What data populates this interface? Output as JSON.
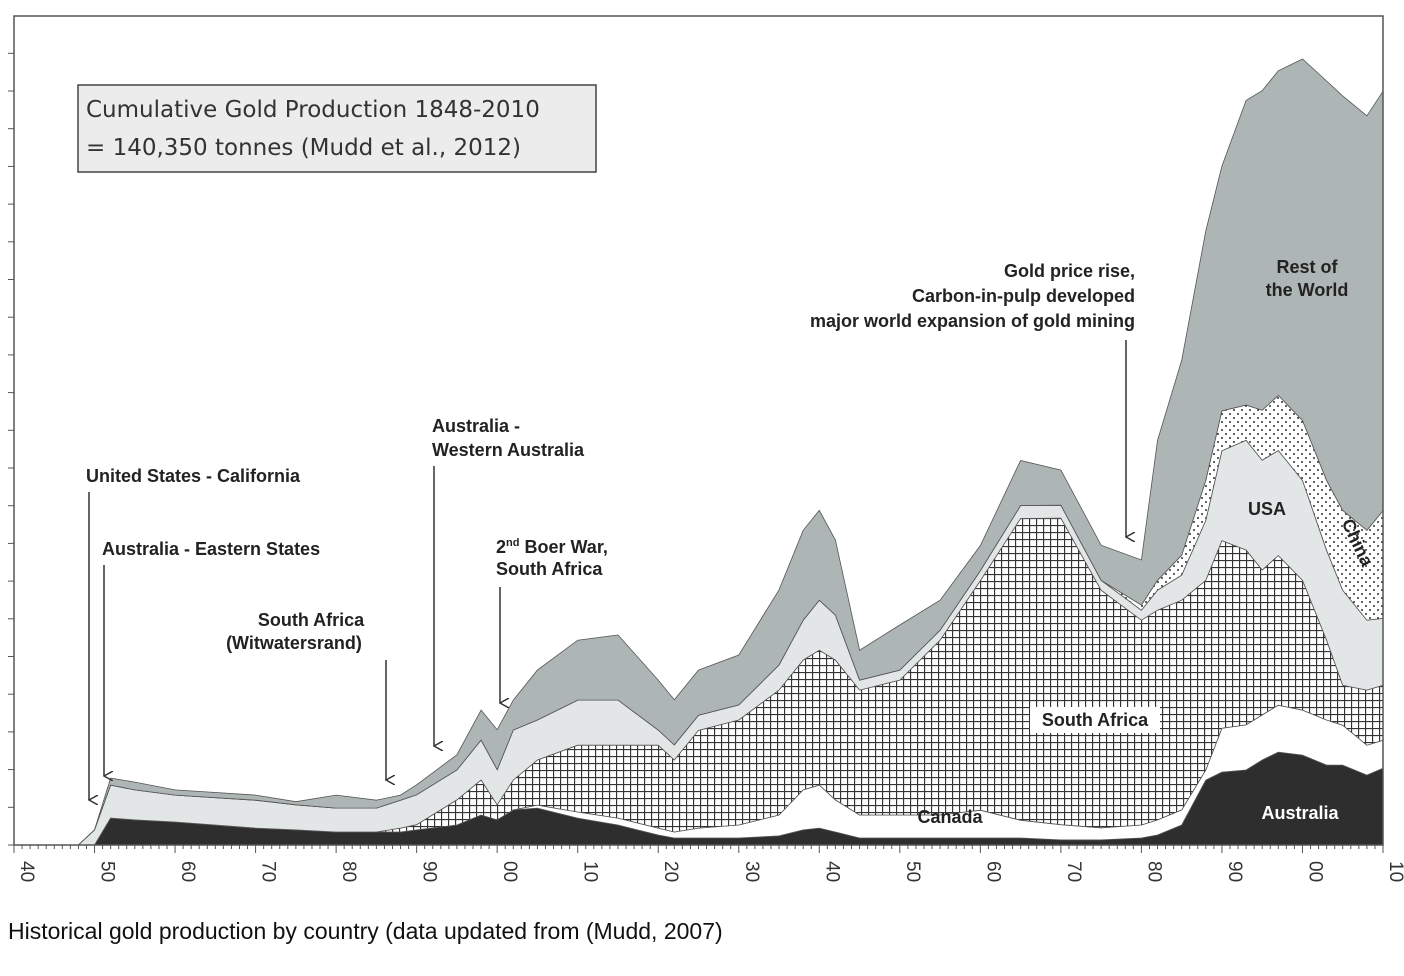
{
  "chart_data": {
    "type": "area",
    "stacked": true,
    "title": "Cumulative Gold Production 1848-2010",
    "subtitle": "= 140,350 tonnes (Mudd et al., 2012)",
    "xlabel": "",
    "ylabel": "",
    "units": "tonnes (estimated)",
    "xlim": [
      1840,
      2010
    ],
    "ylim": [
      0,
      2740
    ],
    "x_tick_labels": [
      "40",
      "50",
      "60",
      "70",
      "80",
      "90",
      "00",
      "10",
      "20",
      "30",
      "40",
      "50",
      "60",
      "70",
      "80",
      "90",
      "00",
      "10"
    ],
    "x": [
      1848,
      1850,
      1852,
      1855,
      1860,
      1870,
      1875,
      1880,
      1885,
      1888,
      1890,
      1895,
      1898,
      1900,
      1902,
      1905,
      1910,
      1915,
      1920,
      1922,
      1925,
      1930,
      1935,
      1938,
      1940,
      1942,
      1945,
      1950,
      1955,
      1960,
      1965,
      1970,
      1975,
      1980,
      1982,
      1985,
      1988,
      1990,
      1993,
      1995,
      1997,
      2000,
      2003,
      2005,
      2008,
      2010
    ],
    "series": [
      {
        "name": "Australia",
        "fill": "#2e2e2e",
        "values": [
          0,
          0,
          89,
          83,
          76,
          56,
          50,
          43,
          43,
          43,
          50,
          66,
          99,
          83,
          116,
          122,
          89,
          66,
          33,
          23,
          23,
          23,
          30,
          50,
          56,
          43,
          23,
          23,
          23,
          23,
          23,
          17,
          17,
          23,
          33,
          66,
          215,
          241,
          248,
          281,
          307,
          297,
          264,
          264,
          231,
          254
        ]
      },
      {
        "name": "Canada",
        "fill": "#ffffff",
        "values": [
          0,
          0,
          0,
          0,
          0,
          0,
          0,
          0,
          0,
          0,
          0,
          0,
          0,
          0,
          0,
          10,
          20,
          23,
          23,
          20,
          33,
          43,
          69,
          132,
          142,
          106,
          76,
          76,
          76,
          92,
          59,
          50,
          40,
          43,
          50,
          50,
          33,
          145,
          149,
          149,
          155,
          149,
          149,
          132,
          99,
          92
        ]
      },
      {
        "name": "South Africa",
        "fill": "hatch",
        "values": [
          0,
          0,
          0,
          0,
          0,
          0,
          0,
          0,
          0,
          13,
          17,
          83,
          116,
          50,
          99,
          149,
          221,
          241,
          274,
          238,
          323,
          347,
          413,
          429,
          446,
          462,
          413,
          446,
          578,
          759,
          997,
          1013,
          785,
          677,
          693,
          693,
          627,
          620,
          578,
          479,
          495,
          429,
          264,
          132,
          182,
          182
        ]
      },
      {
        "name": "USA",
        "fill": "#e3e6e6",
        "values": [
          0,
          50,
          109,
          99,
          89,
          92,
          83,
          79,
          79,
          92,
          99,
          99,
          132,
          116,
          165,
          132,
          149,
          149,
          50,
          50,
          50,
          50,
          83,
          132,
          165,
          149,
          33,
          33,
          33,
          33,
          43,
          43,
          33,
          33,
          66,
          83,
          198,
          297,
          363,
          363,
          347,
          330,
          297,
          314,
          231,
          221
        ]
      },
      {
        "name": "China",
        "fill": "dots",
        "values": [
          0,
          0,
          0,
          0,
          0,
          0,
          0,
          0,
          0,
          0,
          0,
          0,
          0,
          0,
          0,
          0,
          0,
          0,
          0,
          0,
          0,
          0,
          0,
          0,
          0,
          0,
          0,
          0,
          0,
          0,
          0,
          0,
          0,
          17,
          33,
          66,
          132,
          132,
          116,
          165,
          182,
          198,
          231,
          264,
          297,
          356
        ]
      },
      {
        "name": "Rest of the World",
        "fill": "#aeb5b5",
        "values": [
          0,
          0,
          23,
          26,
          17,
          17,
          10,
          43,
          26,
          17,
          33,
          50,
          99,
          132,
          99,
          165,
          198,
          215,
          165,
          149,
          149,
          165,
          248,
          297,
          297,
          248,
          99,
          149,
          99,
          83,
          149,
          116,
          116,
          149,
          462,
          644,
          825,
          809,
          1007,
          1056,
          1073,
          1195,
          1320,
          1370,
          1370,
          1386
        ]
      }
    ],
    "labels": {
      "rest": [
        "Rest of",
        "the World"
      ],
      "usa": "USA",
      "china": "China",
      "south_africa": "South Africa",
      "canada": "Canada",
      "australia": "Australia"
    },
    "annotations": {
      "california": "United States - California",
      "eastern": "Australia - Eastern States",
      "witwatersrand": [
        "South Africa",
        "(Witwatersrand)"
      ],
      "western": [
        "Australia -",
        "Western Australia"
      ],
      "boer": {
        "pre": "2",
        "sup": "nd",
        "post": " Boer War,",
        "line2": "South Africa"
      },
      "price": [
        "Gold price rise,",
        "Carbon-in-pulp developed",
        "major world expansion of gold mining"
      ]
    }
  },
  "caption": "Historical gold production by country (data updated from (Mudd, 2007)"
}
